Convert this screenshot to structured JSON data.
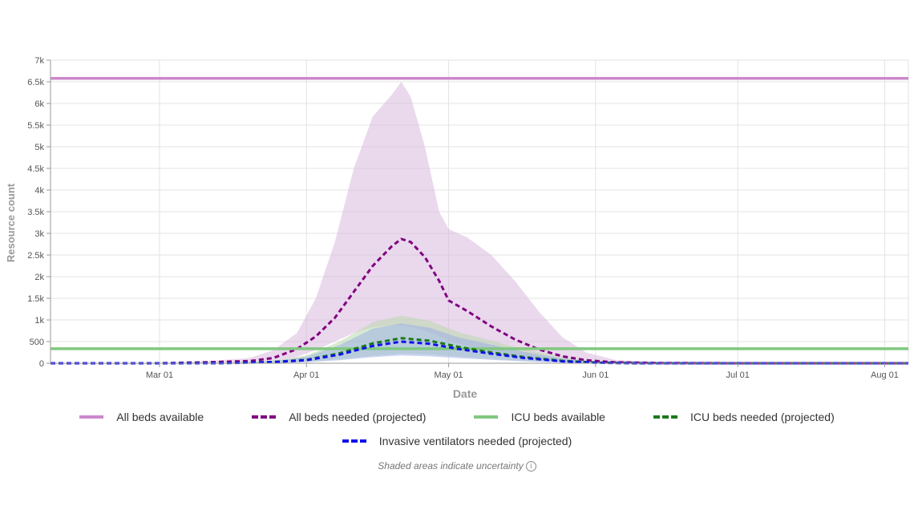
{
  "chart_data": {
    "type": "line",
    "xlabel": "Date",
    "ylabel": "Resource count",
    "ylim": [
      0,
      7000
    ],
    "y_ticks": [
      0,
      500,
      1000,
      1500,
      2000,
      2500,
      3000,
      3500,
      4000,
      4500,
      5000,
      5500,
      6000,
      6500,
      7000
    ],
    "y_tick_labels": [
      "0",
      "500",
      "1k",
      "1.5k",
      "2k",
      "2.5k",
      "3k",
      "3.5k",
      "4k",
      "4.5k",
      "5k",
      "5.5k",
      "6k",
      "6.5k",
      "7k"
    ],
    "x_range": [
      "2020-02-07",
      "2020-08-06"
    ],
    "x_ticks": [
      "2020-03-01",
      "2020-04-01",
      "2020-05-01",
      "2020-06-01",
      "2020-07-01",
      "2020-08-01"
    ],
    "x_tick_labels": [
      "Mar 01",
      "Apr 01",
      "May 01",
      "Jun 01",
      "Jul 01",
      "Aug 01"
    ],
    "grid": true,
    "legend_position": "bottom",
    "note": "Shaded areas indicate uncertainty",
    "series": [
      {
        "name": "All beds available",
        "style": "solid",
        "color": "#cc88cc",
        "x": [
          "2020-02-07",
          "2020-08-06"
        ],
        "y": [
          6580,
          6580
        ]
      },
      {
        "name": "All beds needed (projected)",
        "style": "dashed",
        "color": "#800080",
        "band_color": "#d9b8de",
        "x": [
          "2020-02-07",
          "2020-03-01",
          "2020-03-10",
          "2020-03-20",
          "2020-03-25",
          "2020-03-30",
          "2020-04-03",
          "2020-04-07",
          "2020-04-11",
          "2020-04-15",
          "2020-04-19",
          "2020-04-21",
          "2020-04-23",
          "2020-04-26",
          "2020-04-29",
          "2020-05-01",
          "2020-05-05",
          "2020-05-10",
          "2020-05-15",
          "2020-05-20",
          "2020-05-25",
          "2020-05-30",
          "2020-06-05",
          "2020-06-15",
          "2020-07-01",
          "2020-08-06"
        ],
        "y": [
          0,
          0,
          20,
          50,
          120,
          330,
          620,
          1050,
          1650,
          2250,
          2700,
          2870,
          2800,
          2450,
          1900,
          1450,
          1200,
          850,
          550,
          320,
          160,
          70,
          20,
          5,
          0,
          0
        ],
        "lower": [
          0,
          0,
          5,
          20,
          50,
          150,
          300,
          500,
          700,
          830,
          880,
          870,
          840,
          750,
          620,
          520,
          400,
          280,
          170,
          100,
          50,
          20,
          5,
          0,
          0,
          0
        ],
        "upper": [
          0,
          0,
          40,
          120,
          300,
          700,
          1500,
          2800,
          4500,
          5700,
          6200,
          6500,
          6150,
          5000,
          3500,
          3100,
          2900,
          2500,
          1900,
          1200,
          600,
          250,
          80,
          20,
          0,
          0
        ]
      },
      {
        "name": "ICU beds available",
        "style": "solid",
        "color": "#80c880",
        "x": [
          "2020-02-07",
          "2020-08-06"
        ],
        "y": [
          335,
          335
        ]
      },
      {
        "name": "ICU beds needed (projected)",
        "style": "dashed",
        "color": "#1a7a1a",
        "band_color": "#b8d9ac",
        "x": [
          "2020-02-07",
          "2020-03-01",
          "2020-03-15",
          "2020-03-25",
          "2020-04-01",
          "2020-04-08",
          "2020-04-15",
          "2020-04-21",
          "2020-04-27",
          "2020-05-03",
          "2020-05-10",
          "2020-05-17",
          "2020-05-25",
          "2020-06-01",
          "2020-06-10",
          "2020-08-06"
        ],
        "y": [
          0,
          0,
          5,
          30,
          80,
          230,
          460,
          580,
          520,
          380,
          250,
          140,
          55,
          15,
          0,
          0
        ],
        "lower": [
          0,
          0,
          2,
          10,
          30,
          90,
          170,
          220,
          200,
          150,
          100,
          50,
          20,
          5,
          0,
          0
        ],
        "upper": [
          0,
          0,
          10,
          60,
          180,
          500,
          950,
          1100,
          980,
          720,
          520,
          320,
          140,
          40,
          5,
          0
        ]
      },
      {
        "name": "Invasive ventilators needed (projected)",
        "style": "dashed",
        "color": "#1010ee",
        "band_color": "#9fb0e6",
        "x": [
          "2020-02-07",
          "2020-03-01",
          "2020-03-15",
          "2020-03-25",
          "2020-04-01",
          "2020-04-08",
          "2020-04-15",
          "2020-04-21",
          "2020-04-27",
          "2020-05-03",
          "2020-05-10",
          "2020-05-17",
          "2020-05-25",
          "2020-06-01",
          "2020-06-10",
          "2020-08-06"
        ],
        "y": [
          0,
          0,
          4,
          25,
          70,
          200,
          400,
          500,
          450,
          330,
          220,
          120,
          45,
          12,
          0,
          0
        ],
        "lower": [
          0,
          0,
          1,
          8,
          25,
          70,
          140,
          180,
          160,
          120,
          80,
          40,
          15,
          4,
          0,
          0
        ],
        "upper": [
          0,
          0,
          8,
          50,
          150,
          420,
          800,
          920,
          820,
          600,
          430,
          260,
          110,
          30,
          4,
          0
        ]
      }
    ]
  }
}
